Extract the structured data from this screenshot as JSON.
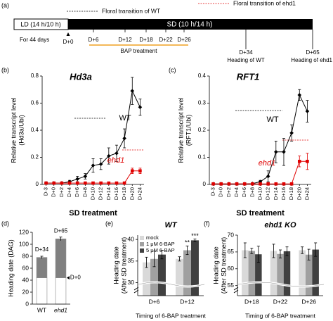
{
  "timeline": {
    "panel_label": "(a)",
    "legend": [
      {
        "text": "Floral transition of ehd1",
        "color": "#e00000"
      },
      {
        "text": "Floral transition of WT",
        "color": "#000000"
      }
    ],
    "ld_label": "LD (14 h/10 h)",
    "sd_label": "SD (10 h/14 h)",
    "ld_note": "For 44 days",
    "start": "D+0",
    "bap_days": [
      "D+6",
      "D+12",
      "D+18",
      "D+22",
      "D+26"
    ],
    "bap_label": "BAP treatment",
    "bap_color": "#f0a020",
    "events": [
      {
        "day": "D+34",
        "text": "Heading of WT"
      },
      {
        "day": "D+65",
        "text": "Heading of ehd1"
      }
    ]
  },
  "chart_data": [
    {
      "type": "line",
      "panel_label": "(b)",
      "title": "Hd3a",
      "ylabel": [
        "Relative transcript level",
        "(Hd3a/Ubi)"
      ],
      "xlabel": "SD treatment",
      "categories": [
        "D-3",
        "D+0",
        "D+2",
        "D+4",
        "D+6",
        "D+8",
        "D+10",
        "D+12",
        "D+14",
        "D+16",
        "D+18",
        "D+20",
        "D+24"
      ],
      "ylim": [
        0,
        0.8
      ],
      "yticks": [
        0,
        0.2,
        0.4,
        0.6,
        0.8
      ],
      "series": [
        {
          "name": "WT",
          "color": "#000000",
          "values": [
            0.01,
            0.01,
            0.01,
            0.02,
            0.04,
            0.06,
            0.14,
            0.15,
            0.21,
            0.23,
            0.34,
            0.69,
            0.57
          ],
          "errors": [
            0.005,
            0.005,
            0.005,
            0.01,
            0.02,
            0.02,
            0.05,
            0.04,
            0.06,
            0.06,
            0.07,
            0.1,
            0.06
          ]
        },
        {
          "name": "ehd1",
          "color": "#e00000",
          "values": [
            0.01,
            0.01,
            0.01,
            0.01,
            0.01,
            0.01,
            0.01,
            0.01,
            0.01,
            0.01,
            0.01,
            0.1,
            0.1
          ],
          "errors": [
            0.005,
            0.005,
            0.005,
            0.005,
            0.005,
            0.005,
            0.005,
            0.005,
            0.005,
            0.005,
            0.005,
            0.02,
            0.02
          ]
        }
      ]
    },
    {
      "type": "line",
      "panel_label": "(c)",
      "title": "RFT1",
      "ylabel": [
        "Relative transcript level",
        "(RFT1/Ubi)"
      ],
      "xlabel": "SD treatment",
      "categories": [
        "D-3",
        "D+0",
        "D+2",
        "D+4",
        "D+6",
        "D+8",
        "D+10",
        "D+12",
        "D+14",
        "D+16",
        "D+18",
        "D+20",
        "D+24"
      ],
      "ylim": [
        0,
        0.4
      ],
      "yticks": [
        0,
        0.1,
        0.2,
        0.3,
        0.4
      ],
      "series": [
        {
          "name": "WT",
          "color": "#000000",
          "values": [
            0.002,
            0.002,
            0.002,
            0.002,
            0.002,
            0.003,
            0.01,
            0.03,
            0.12,
            0.12,
            0.19,
            0.33,
            0.27
          ],
          "errors": [
            0.001,
            0.001,
            0.001,
            0.001,
            0.001,
            0.002,
            0.005,
            0.02,
            0.04,
            0.05,
            0.03,
            0.02,
            0.04
          ]
        },
        {
          "name": "ehd1",
          "color": "#e00000",
          "values": [
            0.002,
            0.002,
            0.002,
            0.002,
            0.002,
            0.002,
            0.002,
            0.002,
            0.002,
            0.002,
            0.002,
            0.085,
            0.085
          ],
          "errors": [
            0.001,
            0.001,
            0.001,
            0.001,
            0.001,
            0.001,
            0.001,
            0.001,
            0.001,
            0.001,
            0.001,
            0.02,
            0.03
          ]
        }
      ]
    },
    {
      "type": "bar",
      "stacked": true,
      "panel_label": "(d)",
      "ylabel": [
        "Heading date (DAG)"
      ],
      "categories": [
        "WT",
        "ehd1"
      ],
      "ylim": [
        0,
        120
      ],
      "yticks": [
        0,
        20,
        40,
        60,
        80,
        100,
        120
      ],
      "series": [
        {
          "color": "#ffffff",
          "values": [
            44,
            44
          ]
        },
        {
          "color": "#808080",
          "values": [
            34,
            65
          ],
          "value_labels": [
            "D+34",
            "D+65"
          ],
          "errors": [
            2,
            3
          ]
        }
      ],
      "annotation": "D+0"
    },
    {
      "type": "bar",
      "panel_label": "(e)",
      "title": "WT",
      "ylabel": [
        "Heading date",
        "(After SD treatment)"
      ],
      "xlabel": "Timing of 6-BAP treatment",
      "categories": [
        "D+6",
        "D+12"
      ],
      "ylim": [
        27,
        41
      ],
      "yticks": [
        30,
        35,
        40
      ],
      "series": [
        {
          "name": "mock",
          "color": "#d9d9d9",
          "values": [
            34.7,
            35.5
          ],
          "errors": [
            1.2,
            0.5
          ]
        },
        {
          "name": "1 μM 6-BAP",
          "color": "#a0a0a0",
          "values": [
            35.5,
            37.5
          ],
          "errors": [
            1.8,
            1.0
          ]
        },
        {
          "name": "5 μM 6-BAP",
          "color": "#404040",
          "values": [
            36.5,
            39.8
          ],
          "errors": [
            1.0,
            0.3
          ]
        }
      ],
      "annotations": [
        {
          "text": "**",
          "series": 1,
          "index": 1
        },
        {
          "text": "***",
          "series": 2,
          "index": 1
        }
      ]
    },
    {
      "type": "bar",
      "panel_label": "(f)",
      "title": "ehd1 KO",
      "ylabel": [
        "Heading date",
        "(After SD treatment)"
      ],
      "xlabel": "Timing of 6-BAP treatment",
      "categories": [
        "D+18",
        "D+22",
        "D+26"
      ],
      "ylim": [
        52,
        70
      ],
      "yticks": [
        55,
        60,
        65,
        70
      ],
      "series": [
        {
          "color": "#d9d9d9",
          "values": [
            65.5,
            65.3,
            65.5
          ],
          "errors": [
            2.2,
            2.0,
            1.0
          ]
        },
        {
          "color": "#a0a0a0",
          "values": [
            65.3,
            64.4,
            64.2
          ],
          "errors": [
            0.8,
            1.2,
            1.6
          ]
        },
        {
          "color": "#404040",
          "values": [
            64.3,
            65.2,
            65.7
          ],
          "errors": [
            2.4,
            1.3,
            2.0
          ]
        }
      ]
    }
  ]
}
